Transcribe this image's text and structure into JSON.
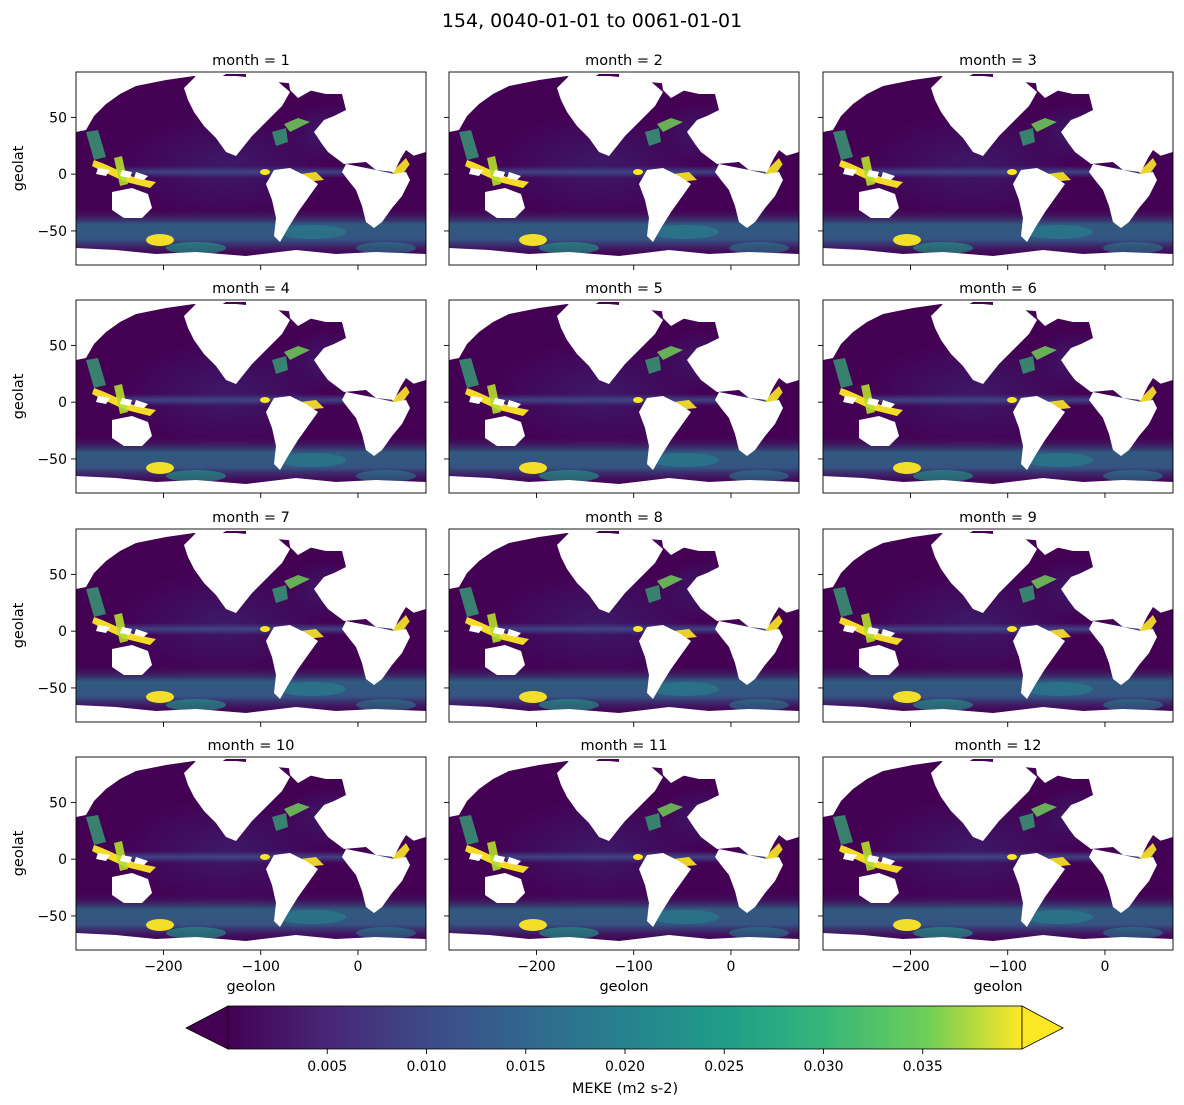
{
  "figure_title": "154, 0040-01-01 to 0061-01-01",
  "chart_data": {
    "type": "heatmap",
    "title": "154, 0040-01-01 to 0061-01-01",
    "variable": "MEKE",
    "colorbar": {
      "label": "MEKE (m2 s-2)",
      "colormap": "viridis",
      "range": [
        0,
        0.04
      ],
      "ticks": [
        "0.005",
        "0.010",
        "0.015",
        "0.020",
        "0.025",
        "0.030",
        "0.035"
      ],
      "extend": "both"
    },
    "panels": [
      {
        "title": "month = 1",
        "month": 1
      },
      {
        "title": "month = 2",
        "month": 2
      },
      {
        "title": "month = 3",
        "month": 3
      },
      {
        "title": "month = 4",
        "month": 4
      },
      {
        "title": "month = 5",
        "month": 5
      },
      {
        "title": "month = 6",
        "month": 6
      },
      {
        "title": "month = 7",
        "month": 7
      },
      {
        "title": "month = 8",
        "month": 8
      },
      {
        "title": "month = 9",
        "month": 9
      },
      {
        "title": "month = 10",
        "month": 10
      },
      {
        "title": "month = 11",
        "month": 11
      },
      {
        "title": "month = 12",
        "month": 12
      }
    ],
    "xlabel": "geolon",
    "ylabel": "geolat",
    "x_ticks": [
      -200,
      -100,
      0
    ],
    "x_tick_labels": [
      "−200",
      "−100",
      "0"
    ],
    "y_ticks": [
      50,
      0,
      -50
    ],
    "y_tick_labels": [
      "50",
      "0",
      "−50"
    ],
    "xlim": [
      -290,
      70
    ],
    "ylim": [
      -80,
      90
    ],
    "grid": false,
    "colors": {
      "land": "#ffffff",
      "low": "#440154",
      "mid": "#21918c",
      "high": "#fde725"
    }
  }
}
